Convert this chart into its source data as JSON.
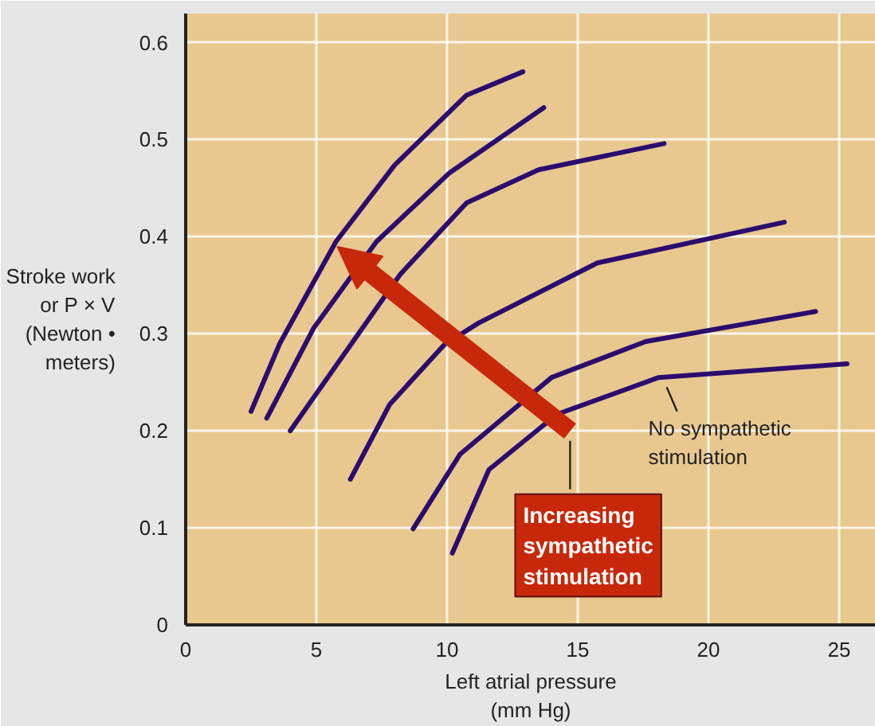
{
  "chart_data": {
    "type": "line",
    "xlabel": "Left atrial pressure\n(mm Hg)",
    "ylabel": "Stroke work\nor P × V\n(Newton •\nmeters)",
    "xlim": [
      0,
      26.4
    ],
    "ylim": [
      0,
      0.63
    ],
    "xticks": [
      0,
      5,
      10,
      15,
      20,
      25
    ],
    "yticks": [
      0,
      0.1,
      0.2,
      0.3,
      0.4,
      0.5,
      0.6
    ],
    "grid": true,
    "line_style": "solid",
    "marker": "none",
    "series": [
      {
        "color": "#2b0c6e",
        "x": [
          2.5,
          3.6,
          5.75,
          8.0,
          10.75,
          12.9
        ],
        "values": [
          0.22,
          0.29,
          0.395,
          0.474,
          0.546,
          0.57
        ]
      },
      {
        "color": "#2b0c6e",
        "x": [
          3.1,
          4.9,
          7.3,
          10.1,
          13.7
        ],
        "values": [
          0.213,
          0.306,
          0.395,
          0.466,
          0.533
        ]
      },
      {
        "color": "#2b0c6e",
        "x": [
          4.0,
          8.2,
          10.75,
          13.5,
          18.3
        ],
        "values": [
          0.2,
          0.361,
          0.435,
          0.469,
          0.496
        ]
      },
      {
        "color": "#2b0c6e",
        "x": [
          6.3,
          7.8,
          9.9,
          11.2,
          15.75,
          22.9
        ],
        "values": [
          0.15,
          0.227,
          0.289,
          0.311,
          0.373,
          0.415
        ]
      },
      {
        "color": "#2b0c6e",
        "x": [
          8.7,
          10.5,
          14.0,
          17.6,
          24.1
        ],
        "values": [
          0.099,
          0.176,
          0.255,
          0.292,
          0.323
        ]
      },
      {
        "name": "No sympathetic stimulation",
        "color": "#2b0c6e",
        "x": [
          10.2,
          11.6,
          14.2,
          18.1,
          25.3
        ],
        "values": [
          0.074,
          0.16,
          0.217,
          0.255,
          0.269
        ]
      }
    ],
    "annotations": [
      "Increasing\nsympathetic\nstimulation"
    ]
  }
}
